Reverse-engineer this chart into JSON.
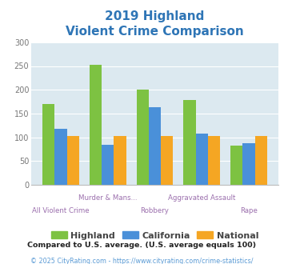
{
  "title_line1": "2019 Highland",
  "title_line2": "Violent Crime Comparison",
  "title_color": "#2e75b6",
  "categories_top": [
    "Murder & Mans...",
    "Aggravated Assault"
  ],
  "categories_bottom": [
    "All Violent Crime",
    "Robbery",
    "Rape"
  ],
  "cat_positions": [
    0,
    1,
    2,
    3,
    4
  ],
  "cat_labels": [
    "All Violent Crime",
    "Murder & Mans...",
    "Robbery",
    "Aggravated Assault",
    "Rape"
  ],
  "cat_row": [
    1,
    0,
    1,
    0,
    1
  ],
  "highland": [
    170,
    252,
    200,
    178,
    82
  ],
  "california": [
    118,
    85,
    163,
    107,
    88
  ],
  "national": [
    102,
    102,
    102,
    102,
    102
  ],
  "highland_color": "#7dc242",
  "california_color": "#4a90d9",
  "national_color": "#f5a623",
  "label_color": "#9b6fad",
  "ylim": [
    0,
    300
  ],
  "yticks": [
    0,
    50,
    100,
    150,
    200,
    250,
    300
  ],
  "plot_bg": "#dce9f0",
  "fig_bg": "#ffffff",
  "legend_labels": [
    "Highland",
    "California",
    "National"
  ],
  "legend_text_color": "#444444",
  "footnote1": "Compared to U.S. average. (U.S. average equals 100)",
  "footnote2": "© 2025 CityRating.com - https://www.cityrating.com/crime-statistics/",
  "footnote1_color": "#222222",
  "footnote2_color": "#5b9bd5"
}
